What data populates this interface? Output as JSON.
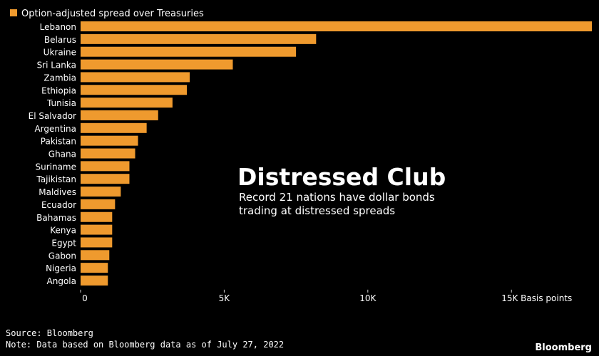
{
  "colors": {
    "background": "#000000",
    "bar": "#ef9a2e",
    "text": "#ffffff",
    "axis": "#cfcfcf"
  },
  "chart_data": {
    "type": "bar",
    "orientation": "horizontal",
    "title": "Distressed Club",
    "subtitle_lines": [
      "Record 21 nations have dollar bonds",
      "trading at distressed spreads"
    ],
    "legend": "Option-adjusted spread over Treasuries",
    "legend_placement": "top-left",
    "categories": [
      "Lebanon",
      "Belarus",
      "Ukraine",
      "Sri Lanka",
      "Zambia",
      "Ethiopia",
      "Tunisia",
      "El Salvador",
      "Argentina",
      "Pakistan",
      "Ghana",
      "Suriname",
      "Tajikistan",
      "Maldives",
      "Ecuador",
      "Bahamas",
      "Kenya",
      "Egypt",
      "Gabon",
      "Nigeria",
      "Angola"
    ],
    "values": [
      17800,
      8200,
      7500,
      5300,
      3800,
      3700,
      3200,
      2700,
      2300,
      2000,
      1900,
      1700,
      1700,
      1400,
      1200,
      1100,
      1100,
      1100,
      1000,
      950,
      950
    ],
    "x_ticks": [
      "0",
      "5K",
      "10K",
      "15K Basis points"
    ],
    "x_tick_values": [
      0,
      5000,
      10000,
      15000
    ],
    "xlim": [
      0,
      17800
    ],
    "grid": false
  },
  "footer": {
    "source": "Source: Bloomberg",
    "note": "Note: Data based on Bloomberg data as of July 27, 2022"
  },
  "brand": "Bloomberg"
}
